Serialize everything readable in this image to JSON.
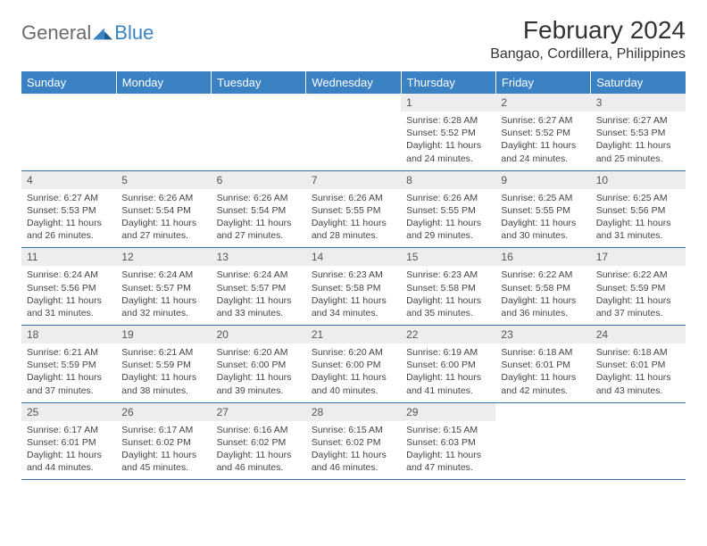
{
  "logo": {
    "text1": "General",
    "text2": "Blue"
  },
  "title": "February 2024",
  "location": "Bangao, Cordillera, Philippines",
  "colors": {
    "header_bg": "#3b82c4",
    "header_text": "#ffffff",
    "daynum_bg": "#ededed",
    "border": "#3b6fa0",
    "logo_gray": "#6b6b6b",
    "logo_blue": "#3b82c4"
  },
  "weekdays": [
    "Sunday",
    "Monday",
    "Tuesday",
    "Wednesday",
    "Thursday",
    "Friday",
    "Saturday"
  ],
  "weeks": [
    [
      null,
      null,
      null,
      null,
      {
        "n": "1",
        "sr": "6:28 AM",
        "ss": "5:52 PM",
        "dl": "11 hours and 24 minutes."
      },
      {
        "n": "2",
        "sr": "6:27 AM",
        "ss": "5:52 PM",
        "dl": "11 hours and 24 minutes."
      },
      {
        "n": "3",
        "sr": "6:27 AM",
        "ss": "5:53 PM",
        "dl": "11 hours and 25 minutes."
      }
    ],
    [
      {
        "n": "4",
        "sr": "6:27 AM",
        "ss": "5:53 PM",
        "dl": "11 hours and 26 minutes."
      },
      {
        "n": "5",
        "sr": "6:26 AM",
        "ss": "5:54 PM",
        "dl": "11 hours and 27 minutes."
      },
      {
        "n": "6",
        "sr": "6:26 AM",
        "ss": "5:54 PM",
        "dl": "11 hours and 27 minutes."
      },
      {
        "n": "7",
        "sr": "6:26 AM",
        "ss": "5:55 PM",
        "dl": "11 hours and 28 minutes."
      },
      {
        "n": "8",
        "sr": "6:26 AM",
        "ss": "5:55 PM",
        "dl": "11 hours and 29 minutes."
      },
      {
        "n": "9",
        "sr": "6:25 AM",
        "ss": "5:55 PM",
        "dl": "11 hours and 30 minutes."
      },
      {
        "n": "10",
        "sr": "6:25 AM",
        "ss": "5:56 PM",
        "dl": "11 hours and 31 minutes."
      }
    ],
    [
      {
        "n": "11",
        "sr": "6:24 AM",
        "ss": "5:56 PM",
        "dl": "11 hours and 31 minutes."
      },
      {
        "n": "12",
        "sr": "6:24 AM",
        "ss": "5:57 PM",
        "dl": "11 hours and 32 minutes."
      },
      {
        "n": "13",
        "sr": "6:24 AM",
        "ss": "5:57 PM",
        "dl": "11 hours and 33 minutes."
      },
      {
        "n": "14",
        "sr": "6:23 AM",
        "ss": "5:58 PM",
        "dl": "11 hours and 34 minutes."
      },
      {
        "n": "15",
        "sr": "6:23 AM",
        "ss": "5:58 PM",
        "dl": "11 hours and 35 minutes."
      },
      {
        "n": "16",
        "sr": "6:22 AM",
        "ss": "5:58 PM",
        "dl": "11 hours and 36 minutes."
      },
      {
        "n": "17",
        "sr": "6:22 AM",
        "ss": "5:59 PM",
        "dl": "11 hours and 37 minutes."
      }
    ],
    [
      {
        "n": "18",
        "sr": "6:21 AM",
        "ss": "5:59 PM",
        "dl": "11 hours and 37 minutes."
      },
      {
        "n": "19",
        "sr": "6:21 AM",
        "ss": "5:59 PM",
        "dl": "11 hours and 38 minutes."
      },
      {
        "n": "20",
        "sr": "6:20 AM",
        "ss": "6:00 PM",
        "dl": "11 hours and 39 minutes."
      },
      {
        "n": "21",
        "sr": "6:20 AM",
        "ss": "6:00 PM",
        "dl": "11 hours and 40 minutes."
      },
      {
        "n": "22",
        "sr": "6:19 AM",
        "ss": "6:00 PM",
        "dl": "11 hours and 41 minutes."
      },
      {
        "n": "23",
        "sr": "6:18 AM",
        "ss": "6:01 PM",
        "dl": "11 hours and 42 minutes."
      },
      {
        "n": "24",
        "sr": "6:18 AM",
        "ss": "6:01 PM",
        "dl": "11 hours and 43 minutes."
      }
    ],
    [
      {
        "n": "25",
        "sr": "6:17 AM",
        "ss": "6:01 PM",
        "dl": "11 hours and 44 minutes."
      },
      {
        "n": "26",
        "sr": "6:17 AM",
        "ss": "6:02 PM",
        "dl": "11 hours and 45 minutes."
      },
      {
        "n": "27",
        "sr": "6:16 AM",
        "ss": "6:02 PM",
        "dl": "11 hours and 46 minutes."
      },
      {
        "n": "28",
        "sr": "6:15 AM",
        "ss": "6:02 PM",
        "dl": "11 hours and 46 minutes."
      },
      {
        "n": "29",
        "sr": "6:15 AM",
        "ss": "6:03 PM",
        "dl": "11 hours and 47 minutes."
      },
      null,
      null
    ]
  ],
  "labels": {
    "sunrise": "Sunrise:",
    "sunset": "Sunset:",
    "daylight": "Daylight:"
  }
}
